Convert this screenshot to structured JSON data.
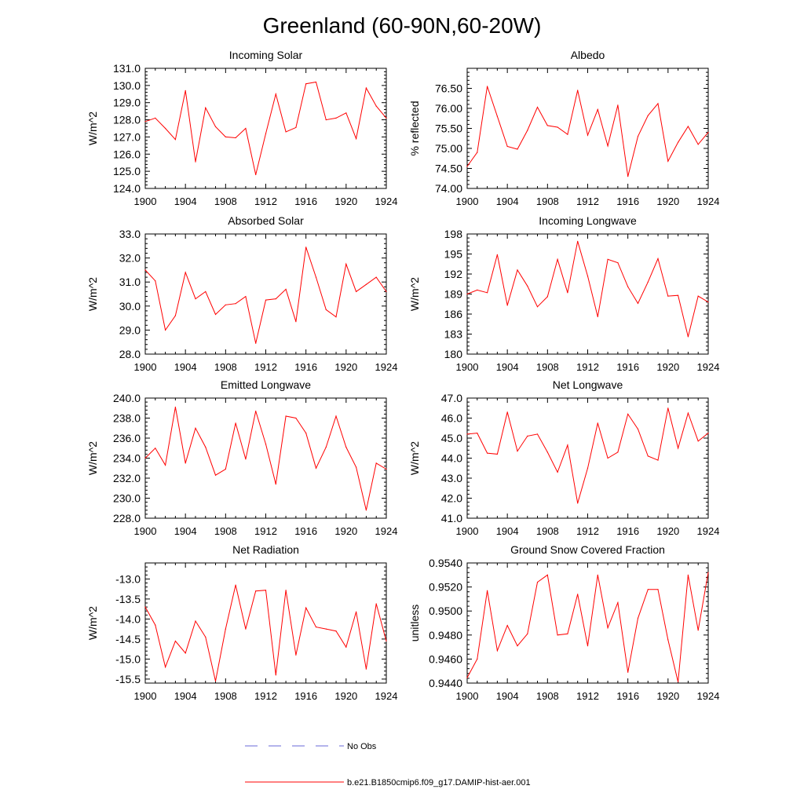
{
  "figure_title": "Greenland (60-90N,60-20W)",
  "colors": {
    "model": "#ff0000",
    "obs": "#6a6ad8",
    "axis": "#000000"
  },
  "legend": {
    "obs_label": "No Obs",
    "model_label": "b.e21.B1850cmip6.f09_g17.DAMIP-hist-aer.001"
  },
  "chart_data": [
    {
      "type": "line",
      "title": "Incoming Solar",
      "ylabel": "W/m^2",
      "xlabel": "",
      "xlim": [
        1900,
        1924
      ],
      "x_ticks": [
        1900,
        1904,
        1908,
        1912,
        1916,
        1920,
        1924
      ],
      "x_tick_labels": [
        "1900",
        "1904",
        "1908",
        "1912",
        "1916",
        "1920",
        "1924"
      ],
      "ylim": [
        124.0,
        131.0
      ],
      "y_ticks": [
        124,
        125,
        126,
        127,
        128,
        129,
        130,
        131
      ],
      "y_tick_labels": [
        "124.0",
        "125.0",
        "126.0",
        "127.0",
        "128.0",
        "129.0",
        "130.0",
        "131.0"
      ],
      "grid": false,
      "series": [
        {
          "name": "b.e21.B1850cmip6.f09_g17.DAMIP-hist-aer.001",
          "x": [
            1900,
            1901,
            1902,
            1903,
            1904,
            1905,
            1906,
            1907,
            1908,
            1909,
            1910,
            1911,
            1912,
            1913,
            1914,
            1915,
            1916,
            1917,
            1918,
            1919,
            1920,
            1921,
            1922,
            1923,
            1924
          ],
          "y": [
            127.9,
            128.1,
            127.5,
            126.85,
            129.7,
            125.55,
            128.7,
            127.6,
            127.0,
            126.95,
            127.5,
            124.8,
            127.2,
            129.5,
            127.3,
            127.55,
            130.1,
            130.2,
            128.0,
            128.1,
            128.4,
            126.9,
            129.85,
            128.8,
            128.1
          ]
        }
      ]
    },
    {
      "type": "line",
      "title": "Albedo",
      "ylabel": "% reflected",
      "xlabel": "",
      "xlim": [
        1900,
        1924
      ],
      "x_ticks": [
        1900,
        1904,
        1908,
        1912,
        1916,
        1920,
        1924
      ],
      "x_tick_labels": [
        "1900",
        "1904",
        "1908",
        "1912",
        "1916",
        "1920",
        "1924"
      ],
      "ylim": [
        74.0,
        77.0
      ],
      "y_ticks": [
        74.0,
        74.5,
        75.0,
        75.5,
        76.0,
        76.5
      ],
      "y_tick_labels": [
        "74.00",
        "74.50",
        "75.00",
        "75.50",
        "76.00",
        "76.50"
      ],
      "grid": false,
      "series": [
        {
          "name": "b.e21.B1850cmip6.f09_g17.DAMIP-hist-aer.001",
          "x": [
            1900,
            1901,
            1902,
            1903,
            1904,
            1905,
            1906,
            1907,
            1908,
            1909,
            1910,
            1911,
            1912,
            1913,
            1914,
            1915,
            1916,
            1917,
            1918,
            1919,
            1920,
            1921,
            1922,
            1923,
            1924
          ],
          "y": [
            74.55,
            74.9,
            76.55,
            75.8,
            75.05,
            74.98,
            75.45,
            76.03,
            75.57,
            75.53,
            75.35,
            76.45,
            75.33,
            75.97,
            75.06,
            76.08,
            74.3,
            75.3,
            75.82,
            76.12,
            74.68,
            75.15,
            75.55,
            75.1,
            75.4
          ]
        }
      ]
    },
    {
      "type": "line",
      "title": "Absorbed Solar",
      "ylabel": "W/m^2",
      "xlabel": "",
      "xlim": [
        1900,
        1924
      ],
      "x_ticks": [
        1900,
        1904,
        1908,
        1912,
        1916,
        1920,
        1924
      ],
      "x_tick_labels": [
        "1900",
        "1904",
        "1908",
        "1912",
        "1916",
        "1920",
        "1924"
      ],
      "ylim": [
        28.0,
        33.0
      ],
      "y_ticks": [
        28,
        29,
        30,
        31,
        32,
        33
      ],
      "y_tick_labels": [
        "28.0",
        "29.0",
        "30.0",
        "31.0",
        "32.0",
        "33.0"
      ],
      "grid": false,
      "series": [
        {
          "name": "b.e21.B1850cmip6.f09_g17.DAMIP-hist-aer.001",
          "x": [
            1900,
            1901,
            1902,
            1903,
            1904,
            1905,
            1906,
            1907,
            1908,
            1909,
            1910,
            1911,
            1912,
            1913,
            1914,
            1915,
            1916,
            1917,
            1918,
            1919,
            1920,
            1921,
            1922,
            1923,
            1924
          ],
          "y": [
            31.5,
            31.05,
            29.0,
            29.6,
            31.4,
            30.3,
            30.6,
            29.65,
            30.05,
            30.1,
            30.4,
            28.45,
            30.25,
            30.3,
            30.7,
            29.35,
            32.45,
            31.2,
            29.85,
            29.55,
            31.75,
            30.6,
            30.9,
            31.2,
            30.6
          ]
        }
      ]
    },
    {
      "type": "line",
      "title": "Incoming Longwave",
      "ylabel": "W/m^2",
      "xlabel": "",
      "xlim": [
        1900,
        1924
      ],
      "x_ticks": [
        1900,
        1904,
        1908,
        1912,
        1916,
        1920,
        1924
      ],
      "x_tick_labels": [
        "1900",
        "1904",
        "1908",
        "1912",
        "1916",
        "1920",
        "1924"
      ],
      "ylim": [
        180,
        198
      ],
      "y_ticks": [
        180,
        183,
        186,
        189,
        192,
        195,
        198
      ],
      "y_tick_labels": [
        "180",
        "183",
        "186",
        "189",
        "192",
        "195",
        "198"
      ],
      "grid": false,
      "series": [
        {
          "name": "b.e21.B1850cmip6.f09_g17.DAMIP-hist-aer.001",
          "x": [
            1900,
            1901,
            1902,
            1903,
            1904,
            1905,
            1906,
            1907,
            1908,
            1909,
            1910,
            1911,
            1912,
            1913,
            1914,
            1915,
            1916,
            1917,
            1918,
            1919,
            1920,
            1921,
            1922,
            1923,
            1924
          ],
          "y": [
            189.0,
            189.6,
            189.2,
            194.9,
            187.3,
            192.6,
            190.2,
            187.1,
            188.6,
            194.2,
            189.2,
            196.9,
            191.7,
            185.6,
            194.2,
            193.7,
            190.1,
            187.6,
            190.8,
            194.3,
            188.7,
            188.8,
            182.6,
            188.7,
            187.8
          ]
        }
      ]
    },
    {
      "type": "line",
      "title": "Emitted Longwave",
      "ylabel": "W/m^2",
      "xlabel": "",
      "xlim": [
        1900,
        1924
      ],
      "x_ticks": [
        1900,
        1904,
        1908,
        1912,
        1916,
        1920,
        1924
      ],
      "x_tick_labels": [
        "1900",
        "1904",
        "1908",
        "1912",
        "1916",
        "1920",
        "1924"
      ],
      "ylim": [
        228.0,
        240.0
      ],
      "y_ticks": [
        228,
        230,
        232,
        234,
        236,
        238,
        240
      ],
      "y_tick_labels": [
        "228.0",
        "230.0",
        "232.0",
        "234.0",
        "236.0",
        "238.0",
        "240.0"
      ],
      "grid": false,
      "series": [
        {
          "name": "b.e21.B1850cmip6.f09_g17.DAMIP-hist-aer.001",
          "x": [
            1900,
            1901,
            1902,
            1903,
            1904,
            1905,
            1906,
            1907,
            1908,
            1909,
            1910,
            1911,
            1912,
            1913,
            1914,
            1915,
            1916,
            1917,
            1918,
            1919,
            1920,
            1921,
            1922,
            1923,
            1924
          ],
          "y": [
            234.0,
            235.0,
            233.3,
            239.1,
            233.5,
            237.0,
            235.1,
            232.3,
            232.9,
            237.5,
            233.9,
            238.7,
            235.4,
            231.4,
            238.2,
            238.0,
            236.5,
            233.0,
            235.1,
            238.2,
            235.1,
            233.1,
            228.8,
            233.5,
            232.9
          ]
        }
      ]
    },
    {
      "type": "line",
      "title": "Net Longwave",
      "ylabel": "W/m^2",
      "xlabel": "",
      "xlim": [
        1900,
        1924
      ],
      "x_ticks": [
        1900,
        1904,
        1908,
        1912,
        1916,
        1920,
        1924
      ],
      "x_tick_labels": [
        "1900",
        "1904",
        "1908",
        "1912",
        "1916",
        "1920",
        "1924"
      ],
      "ylim": [
        41.0,
        47.0
      ],
      "y_ticks": [
        41,
        42,
        43,
        44,
        45,
        46,
        47
      ],
      "y_tick_labels": [
        "41.0",
        "42.0",
        "43.0",
        "44.0",
        "45.0",
        "46.0",
        "47.0"
      ],
      "grid": false,
      "series": [
        {
          "name": "b.e21.B1850cmip6.f09_g17.DAMIP-hist-aer.001",
          "x": [
            1900,
            1901,
            1902,
            1903,
            1904,
            1905,
            1906,
            1907,
            1908,
            1909,
            1910,
            1911,
            1912,
            1913,
            1914,
            1915,
            1916,
            1917,
            1918,
            1919,
            1920,
            1921,
            1922,
            1923,
            1924
          ],
          "y": [
            45.2,
            45.25,
            44.25,
            44.2,
            46.3,
            44.35,
            45.1,
            45.2,
            44.3,
            43.3,
            44.65,
            41.75,
            43.5,
            45.75,
            44.0,
            44.3,
            46.2,
            45.45,
            44.1,
            43.9,
            46.5,
            44.5,
            46.25,
            44.85,
            45.25
          ]
        }
      ]
    },
    {
      "type": "line",
      "title": "Net Radiation",
      "ylabel": "W/m^2",
      "xlabel": "",
      "xlim": [
        1900,
        1924
      ],
      "x_ticks": [
        1900,
        1904,
        1908,
        1912,
        1916,
        1920,
        1924
      ],
      "x_tick_labels": [
        "1900",
        "1904",
        "1908",
        "1912",
        "1916",
        "1920",
        "1924"
      ],
      "ylim": [
        -15.6,
        -12.6
      ],
      "y_ticks": [
        -15.5,
        -15.0,
        -14.5,
        -14.0,
        -13.5,
        -13.0
      ],
      "y_tick_labels": [
        "-15.5",
        "-15.0",
        "-14.5",
        "-14.0",
        "-13.5",
        "-13.0"
      ],
      "grid": false,
      "series": [
        {
          "name": "b.e21.B1850cmip6.f09_g17.DAMIP-hist-aer.001",
          "x": [
            1900,
            1901,
            1902,
            1903,
            1904,
            1905,
            1906,
            1907,
            1908,
            1909,
            1910,
            1911,
            1912,
            1913,
            1914,
            1915,
            1916,
            1917,
            1918,
            1919,
            1920,
            1921,
            1922,
            1923,
            1924
          ],
          "y": [
            -13.7,
            -14.15,
            -15.2,
            -14.55,
            -14.85,
            -14.05,
            -14.45,
            -15.55,
            -14.25,
            -13.15,
            -14.25,
            -13.3,
            -13.28,
            -15.4,
            -13.28,
            -14.9,
            -13.72,
            -14.2,
            -14.25,
            -14.3,
            -14.7,
            -13.82,
            -15.25,
            -13.62,
            -14.55
          ]
        }
      ]
    },
    {
      "type": "line",
      "title": "Ground Snow Covered Fraction",
      "ylabel": "unitless",
      "xlabel": "",
      "xlim": [
        1900,
        1924
      ],
      "x_ticks": [
        1900,
        1904,
        1908,
        1912,
        1916,
        1920,
        1924
      ],
      "x_tick_labels": [
        "1900",
        "1904",
        "1908",
        "1912",
        "1916",
        "1920",
        "1924"
      ],
      "ylim": [
        0.944,
        0.954
      ],
      "y_ticks": [
        0.944,
        0.946,
        0.948,
        0.95,
        0.952,
        0.954
      ],
      "y_tick_labels": [
        "0.9440",
        "0.9460",
        "0.9480",
        "0.9500",
        "0.9520",
        "0.9540"
      ],
      "grid": false,
      "series": [
        {
          "name": "b.e21.B1850cmip6.f09_g17.DAMIP-hist-aer.001",
          "x": [
            1900,
            1901,
            1902,
            1903,
            1904,
            1905,
            1906,
            1907,
            1908,
            1909,
            1910,
            1911,
            1912,
            1913,
            1914,
            1915,
            1916,
            1917,
            1918,
            1919,
            1920,
            1921,
            1922,
            1923,
            1924
          ],
          "y": [
            0.94445,
            0.946,
            0.9517,
            0.9467,
            0.9488,
            0.9471,
            0.9481,
            0.9524,
            0.953,
            0.948,
            0.9481,
            0.9514,
            0.9471,
            0.953,
            0.9486,
            0.9507,
            0.9449,
            0.9494,
            0.9518,
            0.9518,
            0.9476,
            0.9441,
            0.953,
            0.9484,
            0.9532
          ]
        }
      ]
    }
  ]
}
